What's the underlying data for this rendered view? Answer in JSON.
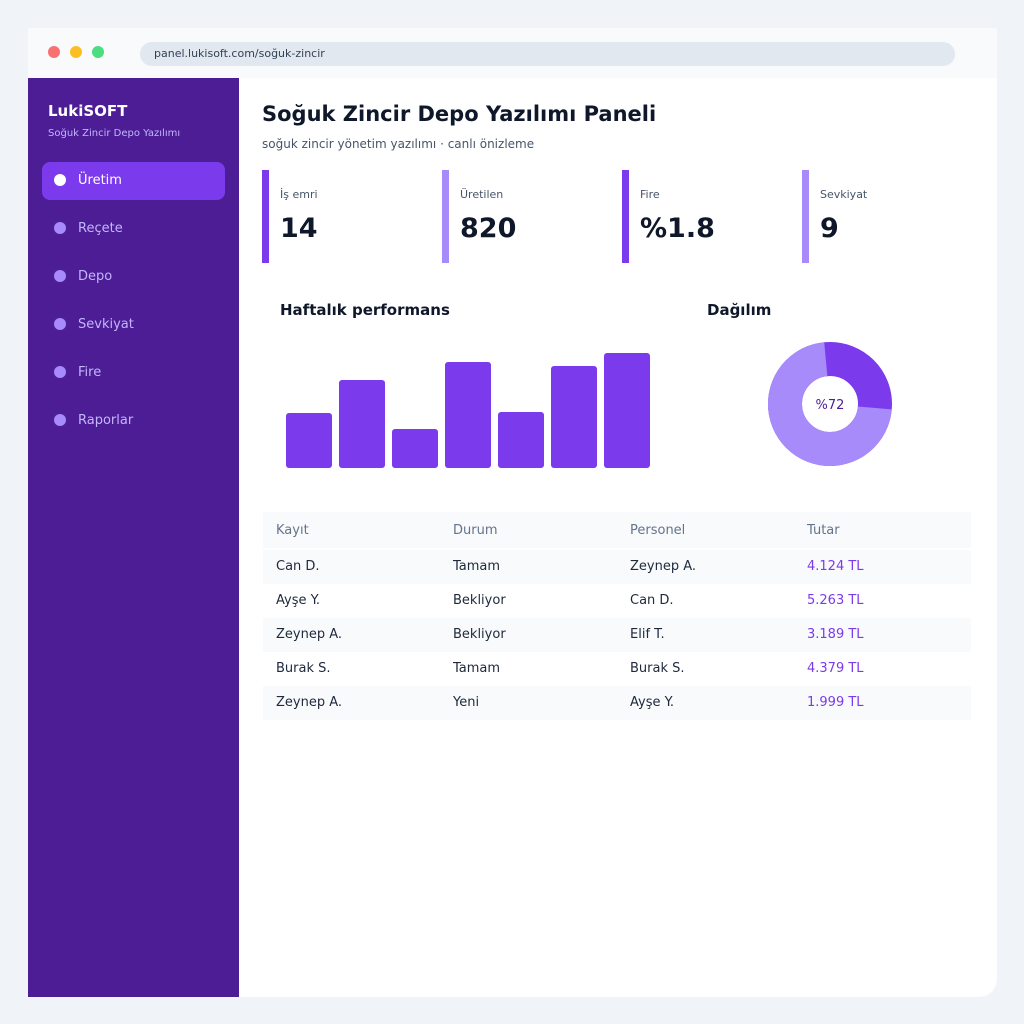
{
  "browser": {
    "url": "panel.lukisoft.com/soğuk-zincir"
  },
  "sidebar": {
    "brand": "LukiSOFT",
    "subtitle": "Soğuk Zincir Depo Yazılımı",
    "items": [
      "Üretim",
      "Reçete",
      "Depo",
      "Sevkiyat",
      "Fire",
      "Raporlar"
    ],
    "active": 0
  },
  "header": {
    "title": "Soğuk Zincir Depo Yazılımı Paneli",
    "subtitle": "soğuk zincir yönetim yazılımı · canlı önizleme"
  },
  "kpis": [
    {
      "label": "İş emri",
      "value": "14"
    },
    {
      "label": "Üretilen",
      "value": "820"
    },
    {
      "label": "Fire",
      "value": "%1.8"
    },
    {
      "label": "Sevkiyat",
      "value": "9"
    }
  ],
  "bar_chart": {
    "type": "bar",
    "title": "Haftalık performans",
    "values": [
      55,
      88,
      39,
      106,
      56,
      102,
      115
    ],
    "color": "#7c3aed"
  },
  "donut_chart": {
    "type": "pie",
    "title": "Dağılım",
    "values": [
      72
    ],
    "value_labels": [
      "%72"
    ],
    "colors": [
      "#a78bfa",
      "#7c3aed"
    ]
  },
  "table": {
    "columns": [
      "Kayıt",
      "Durum",
      "Personel",
      "Tutar"
    ],
    "rows": [
      [
        "Can D.",
        "Tamam",
        "Zeynep A.",
        "4.124 TL"
      ],
      [
        "Ayşe Y.",
        "Bekliyor",
        "Can D.",
        "5.263 TL"
      ],
      [
        "Zeynep A.",
        "Bekliyor",
        "Elif T.",
        "3.189 TL"
      ],
      [
        "Burak S.",
        "Tamam",
        "Burak S.",
        "4.379 TL"
      ],
      [
        "Zeynep A.",
        "Yeni",
        "Ayşe Y.",
        "1.999 TL"
      ]
    ]
  }
}
